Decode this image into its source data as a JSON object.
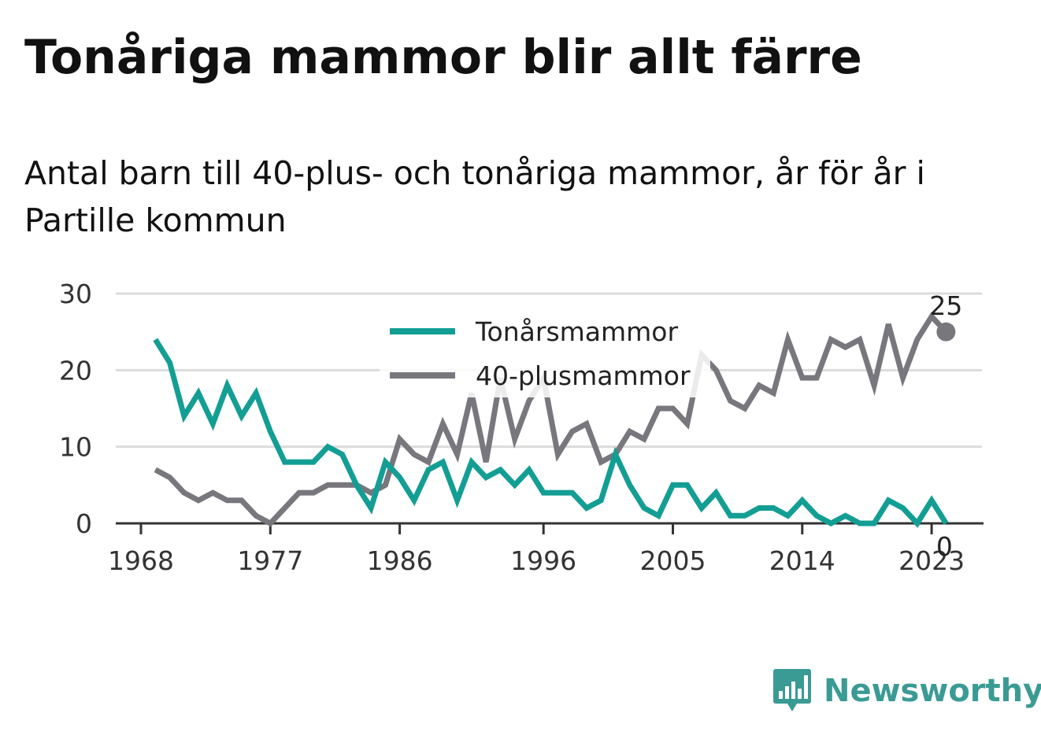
{
  "title": "Tonåriga mammor blir allt färre",
  "subtitle": "Antal barn till 40-plus- och tonåriga mammor, år för år i Partille kommun",
  "brand": {
    "name": "Newsworthy",
    "icon": "newsworthy-logo-icon",
    "color": "#3a9b94"
  },
  "chart_data": {
    "type": "line",
    "x": [
      1969,
      1970,
      1971,
      1972,
      1973,
      1974,
      1975,
      1976,
      1977,
      1978,
      1979,
      1980,
      1981,
      1982,
      1983,
      1984,
      1985,
      1986,
      1987,
      1988,
      1989,
      1990,
      1991,
      1992,
      1993,
      1994,
      1995,
      1996,
      1997,
      1998,
      1999,
      2000,
      2001,
      2002,
      2003,
      2004,
      2005,
      2006,
      2007,
      2008,
      2009,
      2010,
      2011,
      2012,
      2013,
      2014,
      2015,
      2016,
      2017,
      2018,
      2019,
      2020,
      2021,
      2022,
      2023,
      2024
    ],
    "xticks": [
      "1968",
      "1977",
      "1986",
      "1996",
      "2005",
      "2014",
      "2023"
    ],
    "ylim": [
      0,
      30
    ],
    "yticks": [
      "0",
      "10",
      "20",
      "30"
    ],
    "grid": true,
    "legend_position": "top",
    "series": [
      {
        "name": "Tonårsmammor",
        "color": "#139e94",
        "values": [
          24,
          21,
          14,
          17,
          13,
          18,
          14,
          17,
          12,
          8,
          8,
          8,
          10,
          9,
          5,
          2,
          8,
          6,
          3,
          7,
          8,
          3,
          8,
          6,
          7,
          5,
          7,
          4,
          4,
          4,
          2,
          3,
          9,
          5,
          2,
          1,
          5,
          5,
          2,
          4,
          1,
          1,
          2,
          2,
          1,
          3,
          1,
          0,
          1,
          0,
          0,
          3,
          2,
          0,
          3,
          0
        ],
        "end_label": "0"
      },
      {
        "name": "40-plusmammor",
        "color": "#77777d",
        "values": [
          7,
          6,
          4,
          3,
          4,
          3,
          3,
          1,
          0,
          2,
          4,
          4,
          5,
          5,
          5,
          4,
          5,
          11,
          9,
          8,
          13,
          9,
          17,
          8,
          19,
          11,
          16,
          19,
          9,
          12,
          13,
          8,
          9,
          12,
          11,
          15,
          15,
          13,
          22,
          20,
          16,
          15,
          18,
          17,
          24,
          19,
          19,
          24,
          23,
          24,
          18,
          26,
          19,
          24,
          27,
          25
        ],
        "end_label": "25"
      }
    ]
  }
}
